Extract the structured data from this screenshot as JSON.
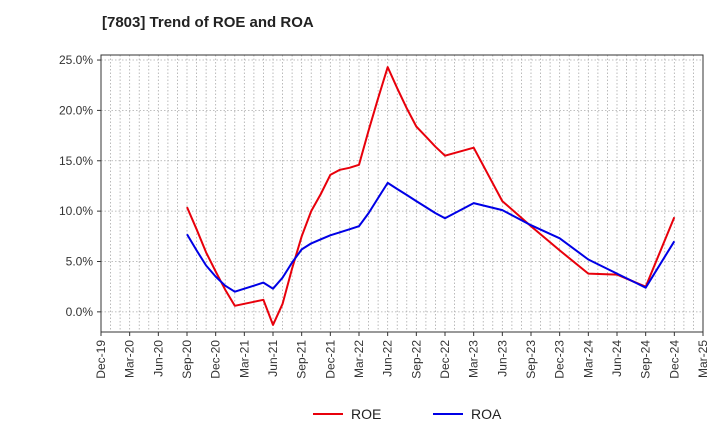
{
  "chart_data": {
    "type": "line",
    "title": "[7803]  Trend of ROE and ROA",
    "xlabel": "",
    "ylabel": "",
    "x_tick_labels": [
      "Dec-19",
      "Mar-20",
      "Jun-20",
      "Sep-20",
      "Dec-20",
      "Mar-21",
      "Jun-21",
      "Sep-21",
      "Dec-21",
      "Mar-22",
      "Jun-22",
      "Sep-22",
      "Dec-22",
      "Mar-23",
      "Jun-23",
      "Sep-23",
      "Dec-23",
      "Mar-24",
      "Jun-24",
      "Sep-24",
      "Dec-24",
      "Mar-25"
    ],
    "y_ticks": [
      0,
      5,
      10,
      15,
      20,
      25
    ],
    "y_tick_labels": [
      "0.0%",
      "5.0%",
      "10.0%",
      "15.0%",
      "20.0%",
      "25.0%"
    ],
    "ylim": [
      -2,
      25.5
    ],
    "grid": true,
    "legend_position": "bottom-center",
    "series": [
      {
        "name": "ROE",
        "color": "#e8000b",
        "points": [
          [
            "Sep-20",
            10.4
          ],
          [
            "Oct-20",
            8.2
          ],
          [
            "Nov-20",
            5.9
          ],
          [
            "Dec-20",
            4.0
          ],
          [
            "Jan-21",
            2.2
          ],
          [
            "Feb-21",
            0.6
          ],
          [
            "Mar-21",
            0.8
          ],
          [
            "Apr-21",
            1.0
          ],
          [
            "May-21",
            1.2
          ],
          [
            "Jun-21",
            -1.3
          ],
          [
            "Jul-21",
            0.8
          ],
          [
            "Aug-21",
            4.3
          ],
          [
            "Sep-21",
            7.5
          ],
          [
            "Oct-21",
            10.0
          ],
          [
            "Nov-21",
            11.7
          ],
          [
            "Dec-21",
            13.6
          ],
          [
            "Jan-22",
            14.1
          ],
          [
            "Feb-22",
            14.3
          ],
          [
            "Mar-22",
            14.6
          ],
          [
            "Apr-22",
            18.0
          ],
          [
            "May-22",
            21.2
          ],
          [
            "Jun-22",
            24.3
          ],
          [
            "Jul-22",
            22.2
          ],
          [
            "Aug-22",
            20.2
          ],
          [
            "Sep-22",
            18.4
          ],
          [
            "Oct-22",
            17.4
          ],
          [
            "Nov-22",
            16.4
          ],
          [
            "Dec-22",
            15.5
          ],
          [
            "Mar-23",
            16.3
          ],
          [
            "Jun-23",
            11.0
          ],
          [
            "Sep-23",
            8.5
          ],
          [
            "Dec-23",
            6.1
          ],
          [
            "Mar-24",
            3.8
          ],
          [
            "Jun-24",
            3.7
          ],
          [
            "Sep-24",
            2.5
          ],
          [
            "Dec-24",
            9.4
          ]
        ]
      },
      {
        "name": "ROA",
        "color": "#0000e6",
        "points": [
          [
            "Sep-20",
            7.7
          ],
          [
            "Oct-20",
            6.1
          ],
          [
            "Nov-20",
            4.6
          ],
          [
            "Dec-20",
            3.5
          ],
          [
            "Jan-21",
            2.6
          ],
          [
            "Feb-21",
            2.0
          ],
          [
            "Mar-21",
            2.3
          ],
          [
            "Apr-21",
            2.6
          ],
          [
            "May-21",
            2.9
          ],
          [
            "Jun-21",
            2.3
          ],
          [
            "Jul-21",
            3.4
          ],
          [
            "Aug-21",
            4.9
          ],
          [
            "Sep-21",
            6.2
          ],
          [
            "Oct-21",
            6.8
          ],
          [
            "Nov-21",
            7.2
          ],
          [
            "Dec-21",
            7.6
          ],
          [
            "Jan-22",
            7.9
          ],
          [
            "Feb-22",
            8.2
          ],
          [
            "Mar-22",
            8.5
          ],
          [
            "Apr-22",
            9.8
          ],
          [
            "May-22",
            11.3
          ],
          [
            "Jun-22",
            12.8
          ],
          [
            "Jul-22",
            12.2
          ],
          [
            "Aug-22",
            11.6
          ],
          [
            "Sep-22",
            11.0
          ],
          [
            "Oct-22",
            10.4
          ],
          [
            "Nov-22",
            9.8
          ],
          [
            "Dec-22",
            9.3
          ],
          [
            "Mar-23",
            10.8
          ],
          [
            "Jun-23",
            10.1
          ],
          [
            "Sep-23",
            8.6
          ],
          [
            "Dec-23",
            7.3
          ],
          [
            "Mar-24",
            5.2
          ],
          [
            "Jun-24",
            3.8
          ],
          [
            "Sep-24",
            2.4
          ],
          [
            "Dec-24",
            7.0
          ]
        ]
      }
    ]
  },
  "colors": {
    "grid": "#aaaaaa",
    "axis": "#333333",
    "text": "#333333"
  }
}
